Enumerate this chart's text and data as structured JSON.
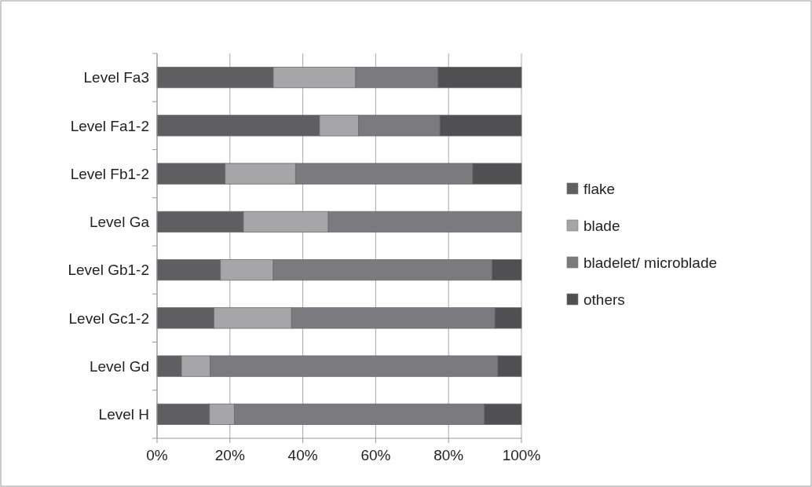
{
  "chart_data": {
    "type": "bar",
    "orientation": "horizontal",
    "stacked": true,
    "categories": [
      "Level Fa3",
      "Level Fa1-2",
      "Level Fb1-2",
      "Level Ga",
      "Level Gb1-2",
      "Level Gc1-2",
      "Level Gd",
      "Level H"
    ],
    "series": [
      {
        "name": "flake",
        "color": "#5f5f62",
        "values": [
          31.9,
          44.6,
          18.7,
          23.7,
          17.4,
          15.6,
          6.7,
          14.4
        ]
      },
      {
        "name": "blade",
        "color": "#a6a6a8",
        "values": [
          22.6,
          10.7,
          19.3,
          23.3,
          14.5,
          21.3,
          7.9,
          6.8
        ]
      },
      {
        "name": "bladelet/ microblade",
        "color": "#7b7b7f",
        "values": [
          22.6,
          22.3,
          48.6,
          53,
          60,
          55.8,
          78.9,
          68.6
        ]
      },
      {
        "name": "others",
        "color": "#505053",
        "values": [
          22.9,
          22.4,
          13.4,
          0,
          8.1,
          7.3,
          6.5,
          10.2
        ]
      }
    ],
    "xlim": [
      0,
      100
    ],
    "xticks": [
      {
        "value": 0,
        "label": "0%"
      },
      {
        "value": 20,
        "label": "20%"
      },
      {
        "value": 40,
        "label": "40%"
      },
      {
        "value": 60,
        "label": "60%"
      },
      {
        "value": 80,
        "label": "80%"
      },
      {
        "value": 100,
        "label": "100%"
      }
    ],
    "grid": "x",
    "legend": "right"
  }
}
